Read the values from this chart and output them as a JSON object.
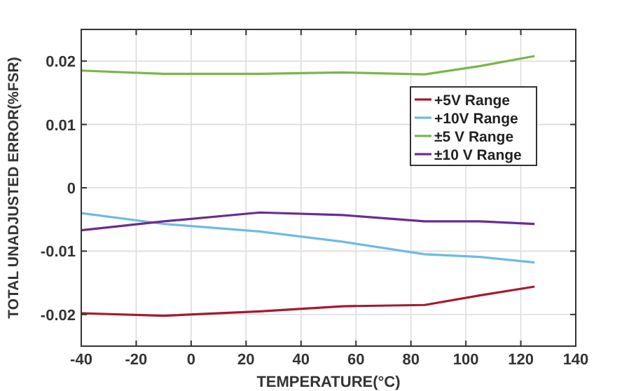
{
  "chart_data": {
    "type": "line",
    "xlabel": "TEMPERATURE(°C)",
    "ylabel": "TOTAL UNADJUSTED ERROR(%FSR)",
    "x": [
      -40,
      -10,
      25,
      55,
      85,
      105,
      125
    ],
    "series": [
      {
        "name": "+5V Range",
        "color": "#a6192e",
        "values": [
          -0.0198,
          -0.0202,
          -0.0195,
          -0.0187,
          -0.0185,
          -0.017,
          -0.0156
        ]
      },
      {
        "name": "+10V Range",
        "color": "#6cbbe3",
        "values": [
          -0.004,
          -0.0057,
          -0.0069,
          -0.0085,
          -0.0105,
          -0.0109,
          -0.0118
        ]
      },
      {
        "name": "±5 V Range",
        "color": "#7ab648",
        "values": [
          0.0185,
          0.018,
          0.018,
          0.0182,
          0.0179,
          0.0192,
          0.0208
        ]
      },
      {
        "name": "±10 V Range",
        "color": "#6a2c91",
        "values": [
          -0.0067,
          -0.0053,
          -0.0039,
          -0.0043,
          -0.0053,
          -0.0053,
          -0.0057
        ]
      }
    ],
    "xlim": [
      -40,
      140
    ],
    "xticks": [
      -40,
      -20,
      0,
      20,
      40,
      60,
      80,
      100,
      120,
      140
    ],
    "ylim": [
      -0.025,
      0.025
    ],
    "yticks": [
      -0.02,
      -0.01,
      0,
      0.01,
      0.02
    ],
    "grid": true,
    "legend": "top right",
    "marker": "none",
    "line_style": "solid"
  }
}
